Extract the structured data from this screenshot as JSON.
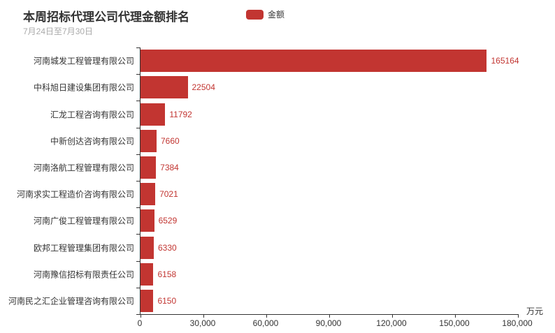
{
  "header": {
    "title": "本周招标代理公司代理金额排名",
    "subtitle": "7月24日至7月30日"
  },
  "legend": {
    "items": [
      {
        "label": "金额",
        "color": "#c23531"
      }
    ]
  },
  "colors": {
    "bar": "#c23531",
    "value_label": "#c23531",
    "axis": "#333333",
    "title": "#333333",
    "subtitle": "#aaaaaa"
  },
  "chart_data": {
    "type": "bar",
    "orientation": "horizontal",
    "title": "本周招标代理公司代理金额排名",
    "subtitle": "7月24日至7月30日",
    "legend": [
      "金额"
    ],
    "legend_position": "top",
    "grid": false,
    "categories": [
      "河南城发工程管理有限公司",
      "中科旭日建设集团有限公司",
      "汇龙工程咨询有限公司",
      "中新创达咨询有限公司",
      "河南洛航工程管理有限公司",
      "河南求实工程造价咨询有限公司",
      "河南广俊工程管理有限公司",
      "欧邦工程管理集团有限公司",
      "河南豫信招标有限责任公司",
      "河南民之汇企业管理咨询有限公司"
    ],
    "values": [
      165164,
      22504,
      11792,
      7660,
      7384,
      7021,
      6529,
      6330,
      6158,
      6150
    ],
    "xlim": [
      0,
      180000
    ],
    "xticks": [
      0,
      30000,
      60000,
      90000,
      120000,
      150000,
      180000
    ],
    "xtick_labels": [
      "0",
      "30,000",
      "60,000",
      "90,000",
      "120,000",
      "150,000",
      "180,000"
    ],
    "unit": "万元",
    "xlabel": "",
    "ylabel": ""
  }
}
